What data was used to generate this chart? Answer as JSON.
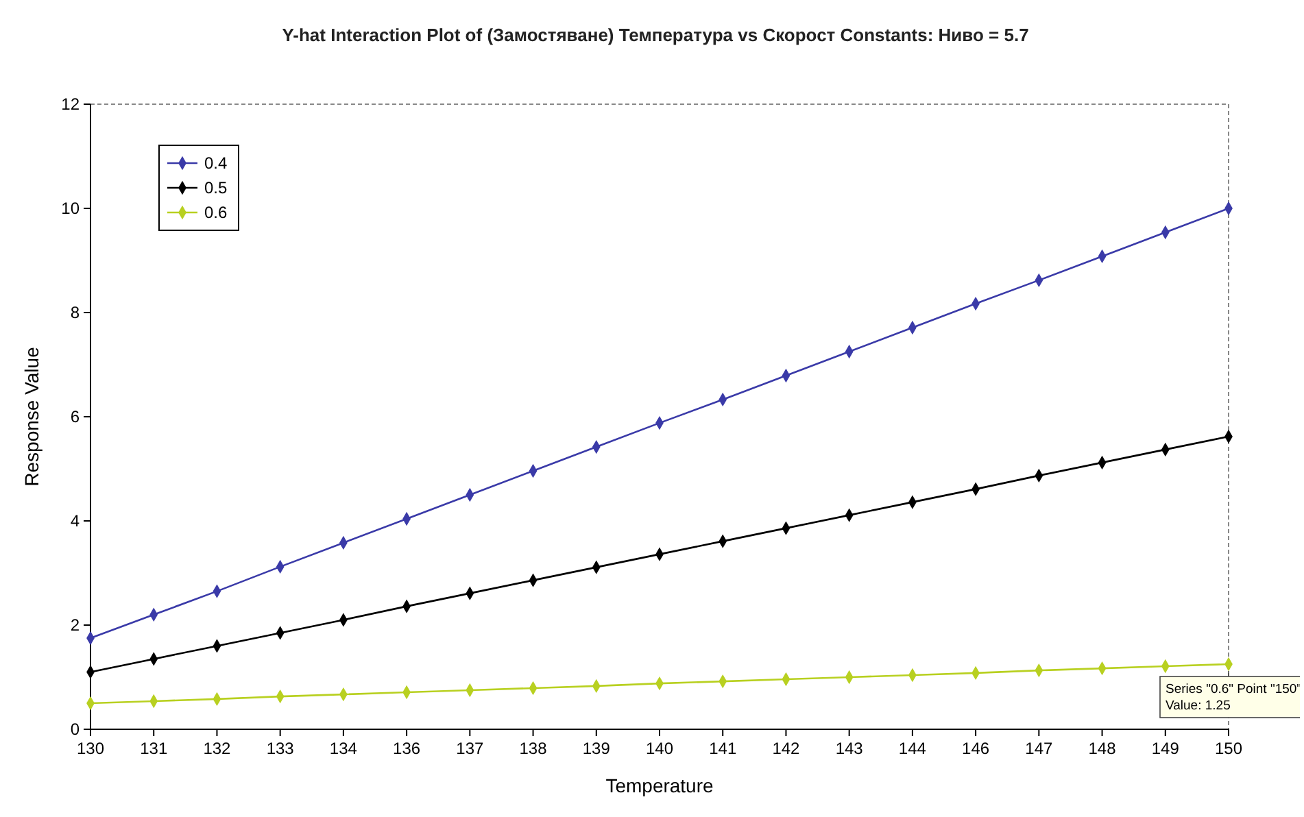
{
  "chart_data": {
    "type": "line",
    "title": "Y-hat Interaction Plot of (Замостяване)  Температура vs Скорост Constants:   Ниво = 5.7",
    "xlabel": "Temperature",
    "ylabel": "Response Value",
    "categories": [
      "130",
      "131",
      "132",
      "133",
      "134",
      "136",
      "137",
      "138",
      "139",
      "140",
      "141",
      "142",
      "143",
      "144",
      "146",
      "147",
      "148",
      "149",
      "150"
    ],
    "ylim": [
      0,
      12
    ],
    "yticks": [
      0,
      2,
      4,
      6,
      8,
      10,
      12
    ],
    "grid": false,
    "legend": "top left",
    "marker": "diamond",
    "line_style": "solid",
    "series": [
      {
        "name": "0.4",
        "color": "#3a3aa8",
        "values": [
          1.75,
          2.2,
          2.65,
          3.12,
          3.58,
          4.04,
          4.5,
          4.96,
          5.42,
          5.88,
          6.33,
          6.79,
          7.25,
          7.71,
          8.17,
          8.62,
          9.08,
          9.54,
          10.0
        ]
      },
      {
        "name": "0.5",
        "color": "#000000",
        "values": [
          1.1,
          1.35,
          1.6,
          1.85,
          2.1,
          2.36,
          2.61,
          2.86,
          3.11,
          3.36,
          3.61,
          3.86,
          4.11,
          4.36,
          4.61,
          4.87,
          5.12,
          5.37,
          5.62
        ]
      },
      {
        "name": "0.6",
        "color": "#b8d020",
        "values": [
          0.5,
          0.54,
          0.58,
          0.63,
          0.67,
          0.71,
          0.75,
          0.79,
          0.83,
          0.88,
          0.92,
          0.96,
          1.0,
          1.04,
          1.08,
          1.13,
          1.17,
          1.21,
          1.25
        ]
      }
    ],
    "annotations": [
      {
        "text": "Series \"0.6\" Point \"150\"\nValue: 1.25",
        "x": "150",
        "y": 1.25
      }
    ]
  }
}
